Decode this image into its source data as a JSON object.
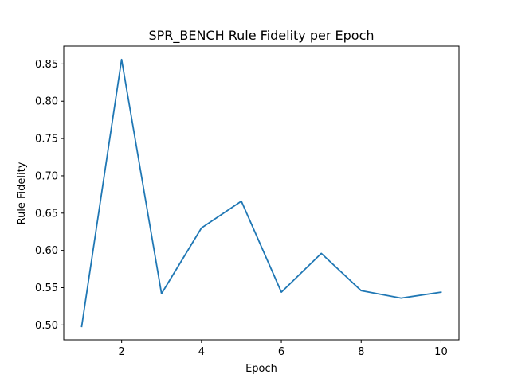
{
  "chart_data": {
    "type": "line",
    "title": "SPR_BENCH Rule Fidelity per Epoch",
    "xlabel": "Epoch",
    "ylabel": "Rule Fidelity",
    "x": [
      1,
      2,
      3,
      4,
      5,
      6,
      7,
      8,
      9,
      10
    ],
    "series": [
      {
        "values": [
          0.498,
          0.856,
          0.542,
          0.63,
          0.666,
          0.544,
          0.596,
          0.546,
          0.536,
          0.544
        ]
      }
    ],
    "xlim": [
      0.55,
      10.45
    ],
    "ylim": [
      0.4801,
      0.8739
    ],
    "xticks": [
      2,
      4,
      6,
      8,
      10
    ],
    "yticks": [
      0.5,
      0.55,
      0.6,
      0.65,
      0.7,
      0.75,
      0.8,
      0.85
    ],
    "grid": false,
    "line_color": "#1f77b4"
  }
}
